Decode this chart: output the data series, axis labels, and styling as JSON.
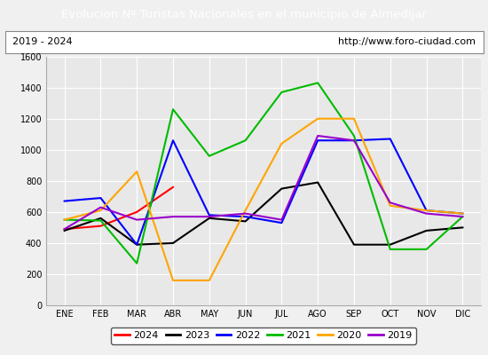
{
  "title": "Evolucion Nº Turistas Nacionales en el municipio de Almedíjar",
  "subtitle_left": "2019 - 2024",
  "subtitle_right": "http://www.foro-ciudad.com",
  "title_bg_color": "#4472c4",
  "title_fg_color": "#ffffff",
  "months": [
    "ENE",
    "FEB",
    "MAR",
    "ABR",
    "MAY",
    "JUN",
    "JUL",
    "AGO",
    "SEP",
    "OCT",
    "NOV",
    "DIC"
  ],
  "ylim": [
    0,
    1600
  ],
  "yticks": [
    0,
    200,
    400,
    600,
    800,
    1000,
    1200,
    1400,
    1600
  ],
  "series": {
    "2024": {
      "color": "#ff0000",
      "linewidth": 1.5,
      "data": [
        490,
        510,
        600,
        760,
        null,
        null,
        null,
        null,
        null,
        null,
        null,
        null
      ]
    },
    "2023": {
      "color": "#000000",
      "linewidth": 1.5,
      "data": [
        480,
        560,
        390,
        400,
        560,
        540,
        750,
        790,
        390,
        390,
        480,
        500
      ]
    },
    "2022": {
      "color": "#0000ff",
      "linewidth": 1.5,
      "data": [
        670,
        690,
        390,
        1060,
        580,
        570,
        530,
        1060,
        1060,
        1070,
        610,
        590
      ]
    },
    "2021": {
      "color": "#00bb00",
      "linewidth": 1.5,
      "data": [
        550,
        545,
        270,
        1260,
        960,
        1060,
        1370,
        1430,
        1090,
        360,
        360,
        570
      ]
    },
    "2020": {
      "color": "#ffa500",
      "linewidth": 1.5,
      "data": [
        550,
        610,
        860,
        160,
        160,
        610,
        1040,
        1200,
        1200,
        640,
        610,
        590
      ]
    },
    "2019": {
      "color": "#9900cc",
      "linewidth": 1.5,
      "data": [
        490,
        630,
        550,
        570,
        570,
        590,
        550,
        1090,
        1060,
        660,
        590,
        570
      ]
    }
  },
  "legend_order": [
    "2024",
    "2023",
    "2022",
    "2021",
    "2020",
    "2019"
  ],
  "bg_plot_color": "#e8e8e8",
  "bg_outer_color": "#f0f0f0",
  "grid_color": "#ffffff",
  "subtitle_bg": "#f0f0f0"
}
